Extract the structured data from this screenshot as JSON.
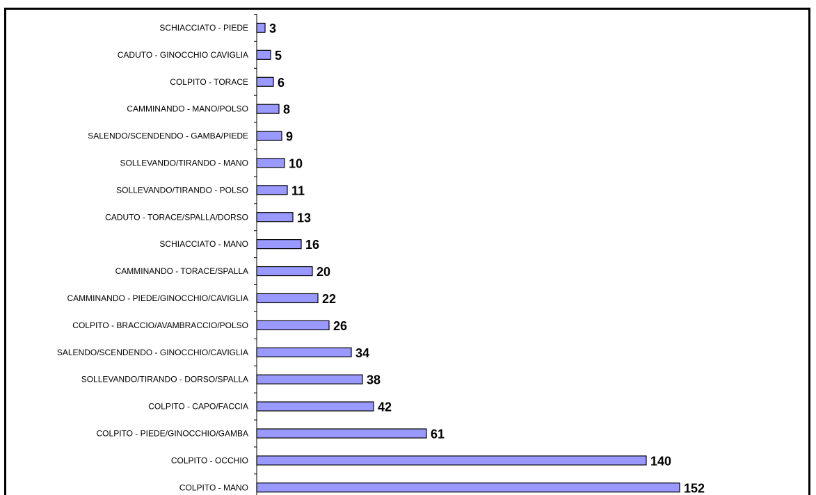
{
  "chart_data": {
    "type": "bar",
    "orientation": "horizontal",
    "categories": [
      "SCHIACCIATO - PIEDE",
      "CADUTO - GINOCCHIO CAVIGLIA",
      "COLPITO - TORACE",
      "CAMMINANDO - MANO/POLSO",
      "SALENDO/SCENDENDO - GAMBA/PIEDE",
      "SOLLEVANDO/TIRANDO - MANO",
      "SOLLEVANDO/TIRANDO - POLSO",
      "CADUTO - TORACE/SPALLA/DORSO",
      "SCHIACCIATO - MANO",
      "CAMMINANDO - TORACE/SPALLA",
      "CAMMINANDO - PIEDE/GINOCCHIO/CAVIGLIA",
      "COLPITO - BRACCIO/AVAMBRACCIO/POLSO",
      "SALENDO/SCENDENDO - GINOCCHIO/CAVIGLIA",
      "SOLLEVANDO/TIRANDO - DORSO/SPALLA",
      "COLPITO - CAPO/FACCIA",
      "COLPITO - PIEDE/GINOCCHIO/GAMBA",
      "COLPITO - OCCHIO",
      "COLPITO -  MANO"
    ],
    "values": [
      3,
      5,
      6,
      8,
      9,
      10,
      11,
      13,
      16,
      20,
      22,
      26,
      34,
      38,
      42,
      61,
      140,
      152
    ],
    "data_labels": [
      "3",
      "5",
      "6",
      "8",
      "9",
      "10",
      "11",
      "13",
      "16",
      "20",
      "22",
      "26",
      "34",
      "38",
      "42",
      "61",
      "140",
      "152"
    ],
    "xlim": [
      0,
      152
    ],
    "grid": false,
    "legend": "none",
    "title": "",
    "xlabel": "",
    "ylabel": "",
    "colors": {
      "bar_fill": "#9999ff",
      "bar_stroke": "#000000",
      "axis": "#000000"
    }
  }
}
